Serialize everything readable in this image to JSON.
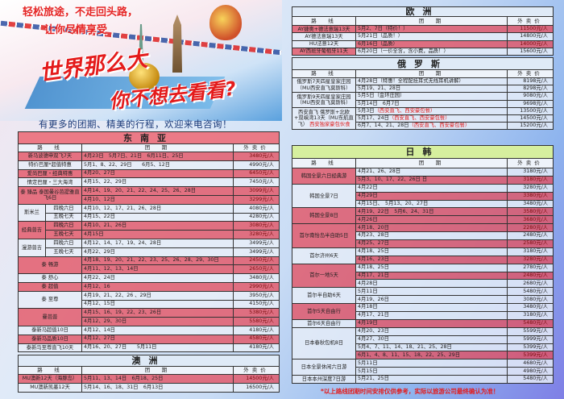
{
  "banner": {
    "slogan_line1": "轻松旅途，不走回头路，",
    "slogan_line2": "让你尽情享受",
    "title_line1": "世界那么大",
    "title_line2": "你不想去看看?",
    "consult_text": "有更多的团期、精美的行程，欢迎来电咨询！"
  },
  "colors": {
    "highlight_row": "#e45060",
    "light_row": "#e8eef8",
    "title_red": "#e41b1b",
    "jk_title_bg": "#d6ef9e"
  },
  "headers": {
    "route": "路　线",
    "dates": "团　期",
    "price": "外卖价"
  },
  "sea": {
    "title": "东南亚",
    "groups": [
      {
        "route": "新马波德申双飞7天",
        "hl": true,
        "rows": [
          {
            "date": "4月23日　5月7日、21日　6月11日、25日",
            "price": "3480元/人"
          }
        ]
      },
      {
        "route": "特价巴厘*超值特惠",
        "hl": false,
        "rows": [
          {
            "date": "5月1、8、22、29日　　6月5、12日",
            "price": "4990元/人"
          }
        ]
      },
      {
        "route": "爱尚巴厘・经典特惠",
        "hl": true,
        "rows": [
          {
            "date": "4月20、27日",
            "price": "6450元/人"
          }
        ]
      },
      {
        "route": "情定巴厘・三大海湾",
        "hl": false,
        "rows": [
          {
            "date": "4月15、22、29日",
            "price": "7450元/人"
          }
        ]
      },
      {
        "route": "泰 臻品 泰国曼谷芭提雅直飞6日",
        "hl": true,
        "rows": [
          {
            "date": "4月14、19、20、21、22、24、25、26、28日",
            "price": "3099元/人"
          },
          {
            "date": "4月10、12日",
            "price": "3299元/人"
          }
        ]
      },
      {
        "route": "斯米兰",
        "hl": false,
        "rows": [
          {
            "sub": "四晚六日",
            "date": "4月10、12、17、21、26、28日",
            "price": "4080元/人"
          },
          {
            "sub": "五晚七天",
            "date": "4月15、22日",
            "price": "4280元/人"
          }
        ]
      },
      {
        "route": "经典普吉",
        "hl": true,
        "rows": [
          {
            "sub": "四晚六日",
            "date": "4月10、21、26日",
            "price": "3080元/人"
          },
          {
            "sub": "五晚七天",
            "date": "4月15日",
            "price": "3280元/人"
          }
        ]
      },
      {
        "route": "漫游普吉",
        "hl": false,
        "rows": [
          {
            "sub": "四晚六日",
            "date": "4月12、14、17、19、24、28日",
            "price": "3499元/人"
          },
          {
            "sub": "五晚七天",
            "date": "4月22、29日",
            "price": "3499元/人"
          }
        ]
      },
      {
        "route": "泰 畅游",
        "hl": true,
        "rows": [
          {
            "date": "4月18、19、20、21、22、23、25、26、28、29、30日",
            "price": "2450元/人"
          },
          {
            "date": "4月11、12、13、14日",
            "price": "2650元/人"
          }
        ]
      },
      {
        "route": "泰 舒心",
        "hl": false,
        "rows": [
          {
            "date": "4月22、24日",
            "price": "3480元/人"
          }
        ]
      },
      {
        "route": "泰 超值",
        "hl": true,
        "rows": [
          {
            "date": "4月12、16",
            "price": "2990元/人"
          }
        ]
      },
      {
        "route": "泰 至尊",
        "hl": false,
        "rows": [
          {
            "date": "4月19、21、22、26 、29日",
            "price": "3950元/人"
          },
          {
            "date": "4月12、15日",
            "price": "4150元/人"
          }
        ]
      },
      {
        "route": "曼芭普",
        "hl": true,
        "rows": [
          {
            "date": "4月15、16、19、22、23、26日",
            "price": "5380元/人"
          },
          {
            "date": "4月12、29、30日",
            "price": "5580元/人"
          }
        ]
      },
      {
        "route": "泰新马超值10日",
        "hl": false,
        "rows": [
          {
            "date": "4月12、14日",
            "price": "4180元/人"
          }
        ]
      },
      {
        "route": "泰新马品质10日",
        "hl": true,
        "rows": [
          {
            "date": "4月12、27日",
            "price": "4580元/人"
          }
        ]
      },
      {
        "route": "泰新马至尊直飞10天",
        "hl": false,
        "rows": [
          {
            "date": "4月16、20、27日　　5月11日",
            "price": "4180元/人"
          }
        ]
      }
    ]
  },
  "oceania": {
    "title": "澳洲",
    "groups": [
      {
        "route": "MU澳新12天（海豚岛）",
        "hl": true,
        "rows": [
          {
            "date": "5月11、13、14日　6月18、25日",
            "price": "14500元/人"
          }
        ]
      },
      {
        "route": "MU澳新凯墨12天",
        "hl": false,
        "rows": [
          {
            "date": "5月14、16、18、31日　6月13日",
            "price": "16500元/人"
          }
        ]
      }
    ]
  },
  "europe": {
    "title": "欧洲",
    "groups": [
      {
        "route": "AY捷奥+德法意瑞13天",
        "hl": true,
        "rows": [
          {
            "date": "5月2、7日（特价！）",
            "price": "11500元/人"
          }
        ]
      },
      {
        "route": "AY德法意瑞13天",
        "hl": false,
        "rows": [
          {
            "date": "5月21日（品质！）",
            "price": "14800元/人"
          }
        ]
      },
      {
        "route": "HU法意12天",
        "hl": false,
        "rows": [
          {
            "date": "6月16日（品质）",
            "price": "14000元/人",
            "hl": true
          }
        ]
      },
      {
        "route": "AY西班牙葡萄牙11天",
        "hl": true,
        "rows": [
          {
            "date": "6月20日（一价全含，含小费，品质！）",
            "price": "15600元/人",
            "hl": false
          }
        ]
      }
    ]
  },
  "russia": {
    "title": "俄罗斯",
    "groups": [
      {
        "route": "俄罗斯7天四星皇家庄园（MU西安直飞莫斯科）",
        "hl": false,
        "rows": [
          {
            "date": "4月28日（特惠！全程配挂耳式无线耳机讲解）",
            "price": "8198元/人"
          },
          {
            "date": "5月19、21、28日",
            "price": "8298元/人"
          }
        ]
      },
      {
        "route": "俄罗斯9天四星皇家庄园（MU西安直飞莫斯科）",
        "hl": false,
        "rows": [
          {
            "date": "5月5日（金环庄园）",
            "price": "9080元/人"
          },
          {
            "date": "5月14日　6月7日",
            "price": "9698元/人"
          }
        ]
      },
      {
        "route": "西安直飞 俄罗斯+北欧+双峡湾13天（MU东航直飞）",
        "route_note": "西安独家豪包伙食",
        "hl": false,
        "rows": [
          {
            "date": "5月3日",
            "note": "（西安直飞、西安豪包餐）",
            "price": "13500元/人"
          },
          {
            "date": "5月17、24日",
            "note": "（西安直飞、西安豪包餐）",
            "price": "14500元/人"
          },
          {
            "date": "6月7、14、21、28日",
            "note": "（西安直飞、西安豪包餐）",
            "price": "15200元/人"
          }
        ]
      }
    ]
  },
  "japan_korea": {
    "title": "日韩",
    "groups": [
      {
        "route": "韩国全景六日经典游",
        "hl": true,
        "rows": [
          {
            "date": "4月21、26、28日",
            "price": "3180元/人",
            "hl": false
          },
          {
            "date": "5月3、10、17、22、26日 日",
            "price": "3180元/人",
            "hl": true
          }
        ]
      },
      {
        "route": "韩国全景7日",
        "hl": false,
        "rows": [
          {
            "date": "4月22日",
            "price": "3280元/人",
            "hl": false
          },
          {
            "date": "4月29日",
            "price": "3380元/人",
            "hl": true
          },
          {
            "date": "4月15日、　5月13、20、27日",
            "price": "3480元/人",
            "hl": false
          }
        ]
      },
      {
        "route": "韩国全景8日",
        "hl": true,
        "rows": [
          {
            "date": "4月19、22日　5月6、24、31日",
            "price": "3580元/人",
            "hl": true
          },
          {
            "date": "4月26日",
            "price": "3680元/人",
            "hl": true
          }
        ]
      },
      {
        "route": "首尔南怡岛半自助5日",
        "hl": true,
        "rows": [
          {
            "date": "4月18、20日",
            "price": "2280元/人",
            "hl": true
          },
          {
            "date": "4月23、28日",
            "price": "2480元/人",
            "hl": false
          },
          {
            "date": "4月25、27日",
            "price": "2580元/人",
            "hl": true
          }
        ]
      },
      {
        "route": "首尔济州6天",
        "hl": false,
        "rows": [
          {
            "date": "4月18、25日",
            "price": "3180元/人",
            "hl": false
          },
          {
            "date": "4月16、23日",
            "price": "3280元/人",
            "hl": true
          }
        ]
      },
      {
        "route": "首尔一地5天",
        "hl": true,
        "rows": [
          {
            "date": "4月18、25日",
            "price": "2780元/人",
            "hl": false
          },
          {
            "date": "4月17、21日",
            "price": "2480元/人",
            "hl": true
          },
          {
            "date": "4月28日",
            "price": "2680元/人",
            "hl": false
          }
        ]
      },
      {
        "route": "首尔半自助6天",
        "hl": false,
        "rows": [
          {
            "date": "5月11日",
            "price": "5480元/人",
            "hl": false
          },
          {
            "date": "4月19、26日",
            "price": "3080元/人",
            "hl": false
          }
        ]
      },
      {
        "route": "首尔5天自由行",
        "hl": true,
        "rows": [
          {
            "date": "4月18日",
            "price": "3480元/人",
            "hl": false
          },
          {
            "date": "4月17、21日",
            "price": "3180元/人",
            "hl": false
          }
        ]
      },
      {
        "route": "首尔6天自由行",
        "hl": false,
        "rows": [
          {
            "date": "4月19日",
            "price": "5480元/人",
            "hl": true
          }
        ]
      },
      {
        "route": "日本春秋包机8日",
        "hl": false,
        "rows": [
          {
            "date": "4月20、23日",
            "price": "5599元/人",
            "hl": false
          },
          {
            "date": "4月27、30日",
            "price": "5999元/人",
            "hl": false
          },
          {
            "date": "5月4、7、11、14、18、21、25、28日",
            "price": "5399元/人",
            "hl": false
          },
          {
            "date": "6月1、4、8、11、15、18、22、25、29日",
            "price": "5399元/人",
            "hl": true
          }
        ]
      },
      {
        "route": "日本全景休闲六日游",
        "hl": false,
        "rows": [
          {
            "date": "5月11日",
            "price": "4680元/人",
            "hl": false
          },
          {
            "date": "5月15日",
            "price": "4980元/人",
            "hl": false
          }
        ]
      },
      {
        "route": "日本本州深度7日游",
        "hl": false,
        "rows": [
          {
            "date": "5月21、25日",
            "price": "5480元/人",
            "hl": false
          }
        ]
      }
    ]
  },
  "footnote": "*以上路线团期时间安排仅供参考，实际以旅游公司最终确认为准！"
}
